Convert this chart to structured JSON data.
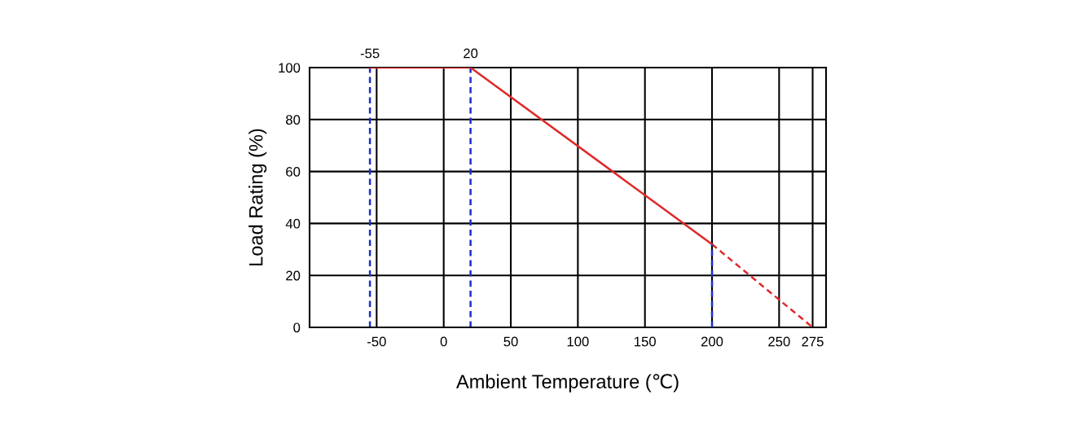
{
  "chart_data": {
    "type": "line",
    "xlabel": "Ambient Temperature (℃)",
    "ylabel": "Load Rating (%)",
    "xlim": [
      -100,
      285
    ],
    "ylim": [
      0,
      100
    ],
    "xticks": [
      -50,
      0,
      50,
      100,
      150,
      200,
      250,
      275
    ],
    "yticks": [
      0,
      20,
      40,
      60,
      80,
      100
    ],
    "grid": true,
    "marker": "none",
    "series": [
      {
        "color": "#e02828",
        "x": [
          -55,
          20,
          200
        ],
        "values": [
          100,
          100,
          32
        ],
        "line_style": "solid"
      },
      {
        "color": "#e02828",
        "x": [
          200,
          275
        ],
        "values": [
          32,
          0
        ],
        "line_style": "dashed"
      },
      {
        "color": "#1a2ed0",
        "x": [
          200,
          200
        ],
        "values": [
          0,
          32
        ],
        "line_style": "dashed"
      }
    ],
    "ref_lines": [
      {
        "axis": "x",
        "value": -55,
        "label": "-55",
        "color": "#1a2ed0",
        "line_style": "dashed"
      },
      {
        "axis": "x",
        "value": 20,
        "label": "20",
        "color": "#1a2ed0",
        "line_style": "dashed"
      }
    ]
  }
}
